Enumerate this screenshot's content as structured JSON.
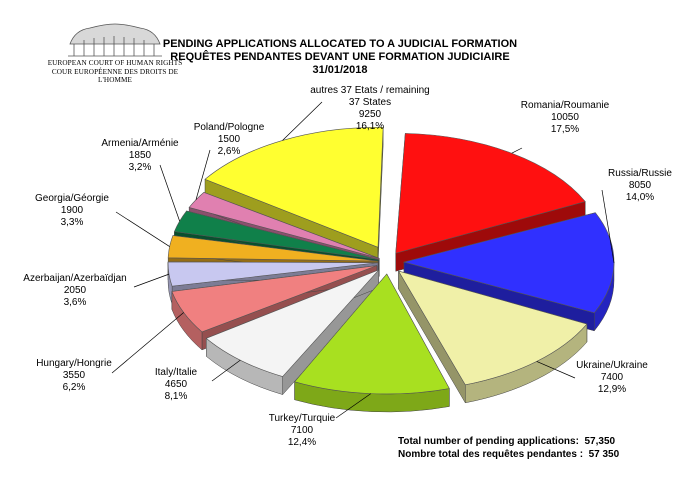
{
  "header": {
    "logo_line1": "EUROPEAN COURT OF HUMAN RIGHTS",
    "logo_line2": "COUR EUROPÉENNE DES DROITS DE L'HOMME"
  },
  "chart_data": {
    "type": "pie",
    "title": "PENDING APPLICATIONS ALLOCATED TO A JUDICIAL FORMATION",
    "subtitle": "REQUÊTES PENDANTES DEVANT UNE FORMATION JUDICIAIRE",
    "date": "31/01/2018",
    "slices": [
      {
        "label": "Romania/Roumanie",
        "value": 10050,
        "value_text": "10050",
        "percent": "17,5%",
        "color": "#ff1010"
      },
      {
        "label": "Russia/Russie",
        "value": 8050,
        "value_text": "8050",
        "percent": "14,0%",
        "color": "#3030ff"
      },
      {
        "label": "Ukraine/Ukraine",
        "value": 7400,
        "value_text": "7400",
        "percent": "12,9%",
        "color": "#f0f0a8"
      },
      {
        "label": "Turkey/Turquie",
        "value": 7100,
        "value_text": "7100",
        "percent": "12,4%",
        "color": "#a8e020"
      },
      {
        "label": "Italy/Italie",
        "value": 4650,
        "value_text": "4650",
        "percent": "8,1%",
        "color": "#f4f4f4"
      },
      {
        "label": "Hungary/Hongrie",
        "value": 3550,
        "value_text": "3550",
        "percent": "6,2%",
        "color": "#f08080"
      },
      {
        "label": "Azerbaijan/Azerbaïdjan",
        "value": 2050,
        "value_text": "2050",
        "percent": "3,6%",
        "color": "#c8c8f0"
      },
      {
        "label": "Georgia/Géorgie",
        "value": 1900,
        "value_text": "1900",
        "percent": "3,3%",
        "color": "#f0b020"
      },
      {
        "label": "Armenia/Arménie",
        "value": 1850,
        "value_text": "1850",
        "percent": "3,2%",
        "color": "#10804a"
      },
      {
        "label": "Poland/Pologne",
        "value": 1500,
        "value_text": "1500",
        "percent": "2,6%",
        "color": "#e080b0"
      },
      {
        "label": "autres 37 Etats / remaining\n37 States",
        "value": 9250,
        "value_text": "9250",
        "percent": "16,1%",
        "color": "#ffff30"
      }
    ],
    "total_en": "Total number of pending applications:  57,350",
    "total_fr": "Nombre total des requêtes pendantes :  57 350"
  }
}
